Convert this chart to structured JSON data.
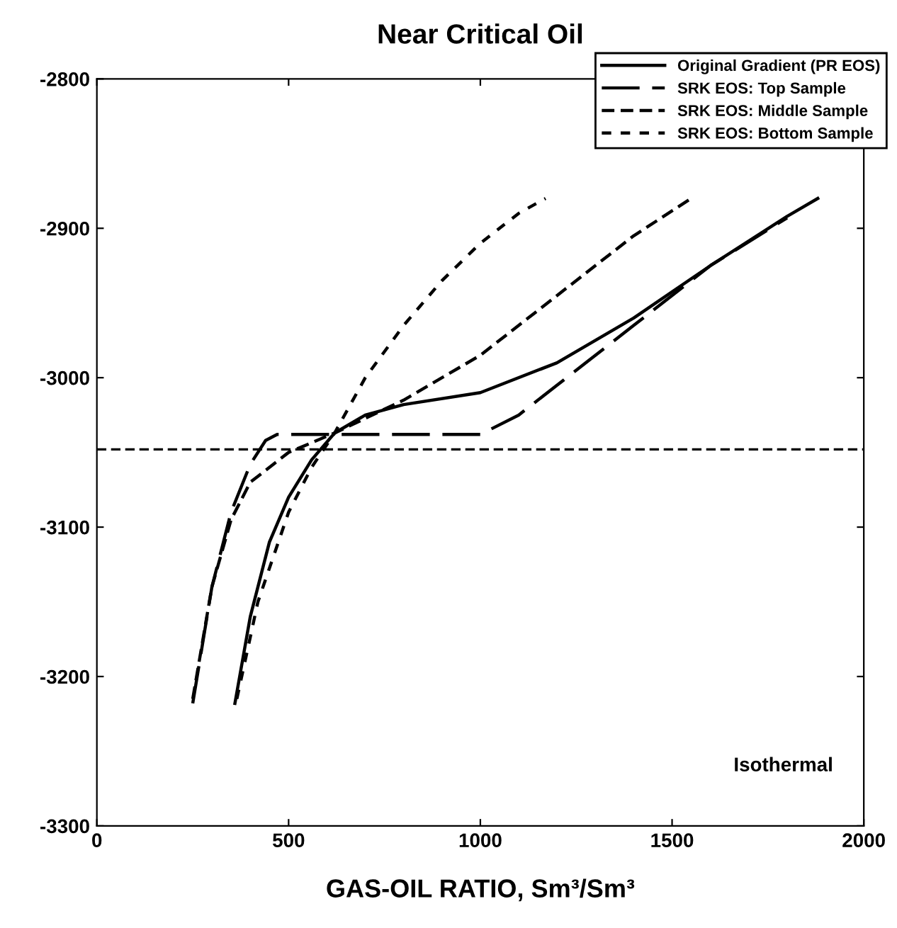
{
  "chart_data": {
    "type": "line",
    "title": "Near Critical Oil",
    "xlabel": "GAS-OIL RATIO, Sm³/Sm³",
    "xlim": [
      0,
      2000
    ],
    "xticks": [
      0,
      500,
      1000,
      1500,
      2000
    ],
    "ylim": [
      -3300,
      -2800
    ],
    "yticks": [
      -3300,
      -3200,
      -3100,
      -3000,
      -2900,
      -2800
    ],
    "grid": false,
    "legend": "top right",
    "marker": "none",
    "series": [
      {
        "name": "Original Gradient (PR EOS)",
        "color": "#000000",
        "line_style": "solid",
        "x": [
          360,
          400,
          450,
          500,
          560,
          620,
          700,
          800,
          1000,
          1200,
          1400,
          1600,
          1800,
          1880
        ],
        "values": [
          -3218,
          -3160,
          -3110,
          -3080,
          -3055,
          -3037,
          -3025,
          -3018,
          -3010,
          -2990,
          -2960,
          -2925,
          -2892,
          -2880
        ]
      },
      {
        "name": "SRK EOS: Top Sample",
        "color": "#000000",
        "line_style": "longdash",
        "x": [
          250,
          300,
          350,
          400,
          440,
          470,
          620,
          1000,
          1100,
          1200,
          1400,
          1600,
          1800
        ],
        "values": [
          -3218,
          -3140,
          -3090,
          -3058,
          -3042,
          -3038,
          -3038,
          -3038,
          -3025,
          -3005,
          -2965,
          -2925,
          -2893
        ]
      },
      {
        "name": "SRK EOS: Middle Sample",
        "color": "#000000",
        "line_style": "dashed",
        "x": [
          250,
          300,
          350,
          400,
          500,
          620,
          800,
          1000,
          1200,
          1400,
          1550
        ],
        "values": [
          -3215,
          -3140,
          -3095,
          -3070,
          -3050,
          -3037,
          -3015,
          -2985,
          -2945,
          -2905,
          -2880
        ]
      },
      {
        "name": "SRK EOS: Bottom Sample",
        "color": "#000000",
        "line_style": "dotted",
        "x": [
          365,
          420,
          500,
          560,
          620,
          700,
          800,
          900,
          1000,
          1100,
          1170
        ],
        "values": [
          -3215,
          -3150,
          -3090,
          -3060,
          -3037,
          -3000,
          -2965,
          -2935,
          -2910,
          -2890,
          -2880
        ]
      }
    ],
    "ref_lines": [
      {
        "axis": "y",
        "value": -3048,
        "color": "#000000",
        "line_style": "dashed"
      }
    ],
    "annotations": [
      "Isothermal"
    ]
  }
}
